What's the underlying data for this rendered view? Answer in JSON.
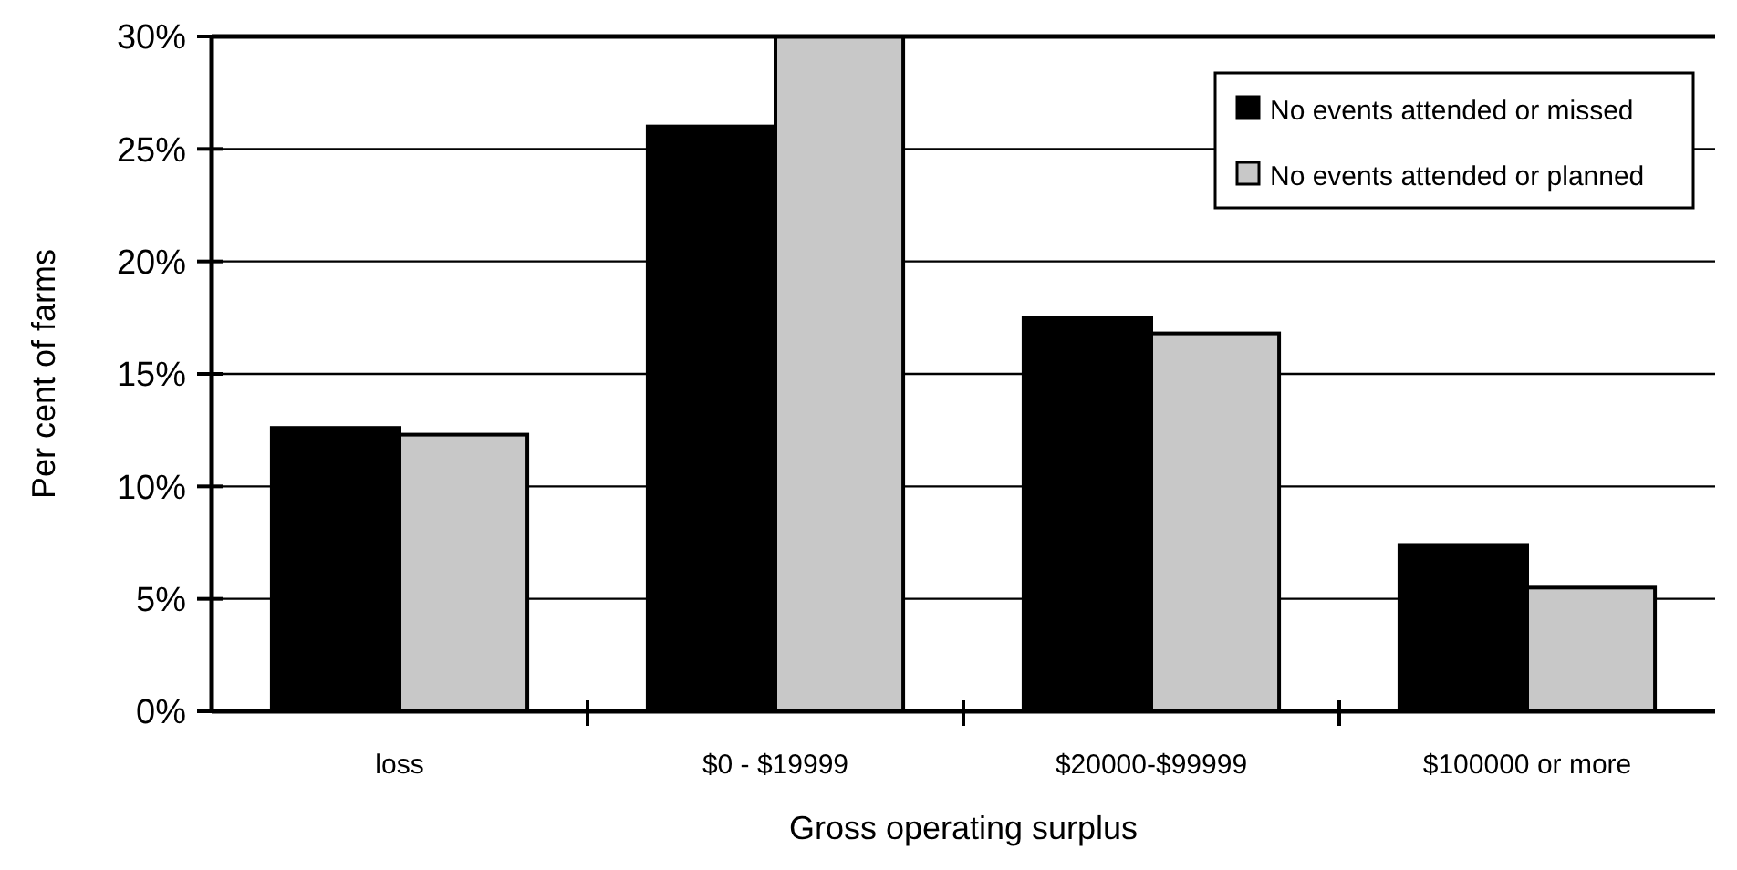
{
  "chart_data": {
    "type": "bar",
    "xlabel": "Gross operating surplus",
    "ylabel": "Per cent of farms",
    "categories": [
      "loss",
      "$0 - $19999",
      "$20000-$99999",
      "$100000 or more"
    ],
    "series": [
      {
        "name": "No events attended or missed",
        "color": "#000000",
        "values": [
          12.6,
          26.0,
          17.5,
          7.4
        ]
      },
      {
        "name": "No events attended or planned",
        "color": "#c8c8c8",
        "values": [
          12.3,
          30,
          16.8,
          5.5
        ]
      }
    ],
    "ylim": [
      0,
      30
    ],
    "yticks": [
      {
        "value": 0,
        "label": "0%"
      },
      {
        "value": 5,
        "label": "5%"
      },
      {
        "value": 10,
        "label": "10%"
      },
      {
        "value": 15,
        "label": "15%"
      },
      {
        "value": 20,
        "label": "20%"
      },
      {
        "value": 25,
        "label": "25%"
      },
      {
        "value": 30,
        "label": "30%"
      }
    ],
    "grid": "y",
    "legend": "top right"
  }
}
